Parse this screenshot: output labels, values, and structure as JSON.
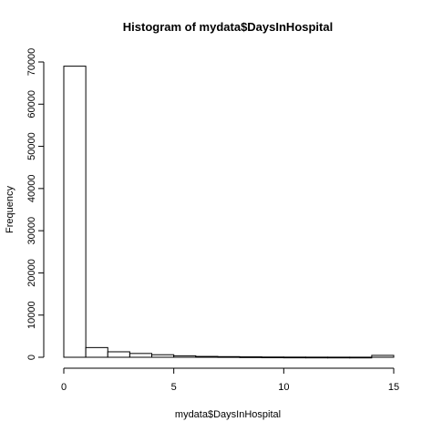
{
  "chart_data": {
    "type": "bar",
    "title": "Histogram of mydata$DaysInHospital",
    "xlabel": "mydata$DaysInHospital",
    "ylabel": "Frequency",
    "xlim": [
      0,
      15
    ],
    "ylim": [
      0,
      70000
    ],
    "grid": false,
    "legend": "none",
    "x_ticks": [
      0,
      5,
      10,
      15
    ],
    "y_ticks": [
      0,
      10000,
      20000,
      30000,
      40000,
      50000,
      60000,
      70000
    ],
    "bins": [
      {
        "from": 0,
        "to": 1,
        "value": 69000
      },
      {
        "from": 1,
        "to": 2,
        "value": 2300
      },
      {
        "from": 2,
        "to": 3,
        "value": 1300
      },
      {
        "from": 3,
        "to": 4,
        "value": 900
      },
      {
        "from": 4,
        "to": 5,
        "value": 600
      },
      {
        "from": 5,
        "to": 6,
        "value": 350
      },
      {
        "from": 6,
        "to": 7,
        "value": 200
      },
      {
        "from": 7,
        "to": 8,
        "value": 150
      },
      {
        "from": 8,
        "to": 9,
        "value": 100
      },
      {
        "from": 9,
        "to": 10,
        "value": 60
      },
      {
        "from": 10,
        "to": 11,
        "value": 40
      },
      {
        "from": 11,
        "to": 12,
        "value": 30
      },
      {
        "from": 12,
        "to": 13,
        "value": 25
      },
      {
        "from": 13,
        "to": 14,
        "value": 20
      },
      {
        "from": 14,
        "to": 15,
        "value": 450
      }
    ],
    "bar_fill": "#ffffff",
    "bar_stroke": "#000000"
  }
}
